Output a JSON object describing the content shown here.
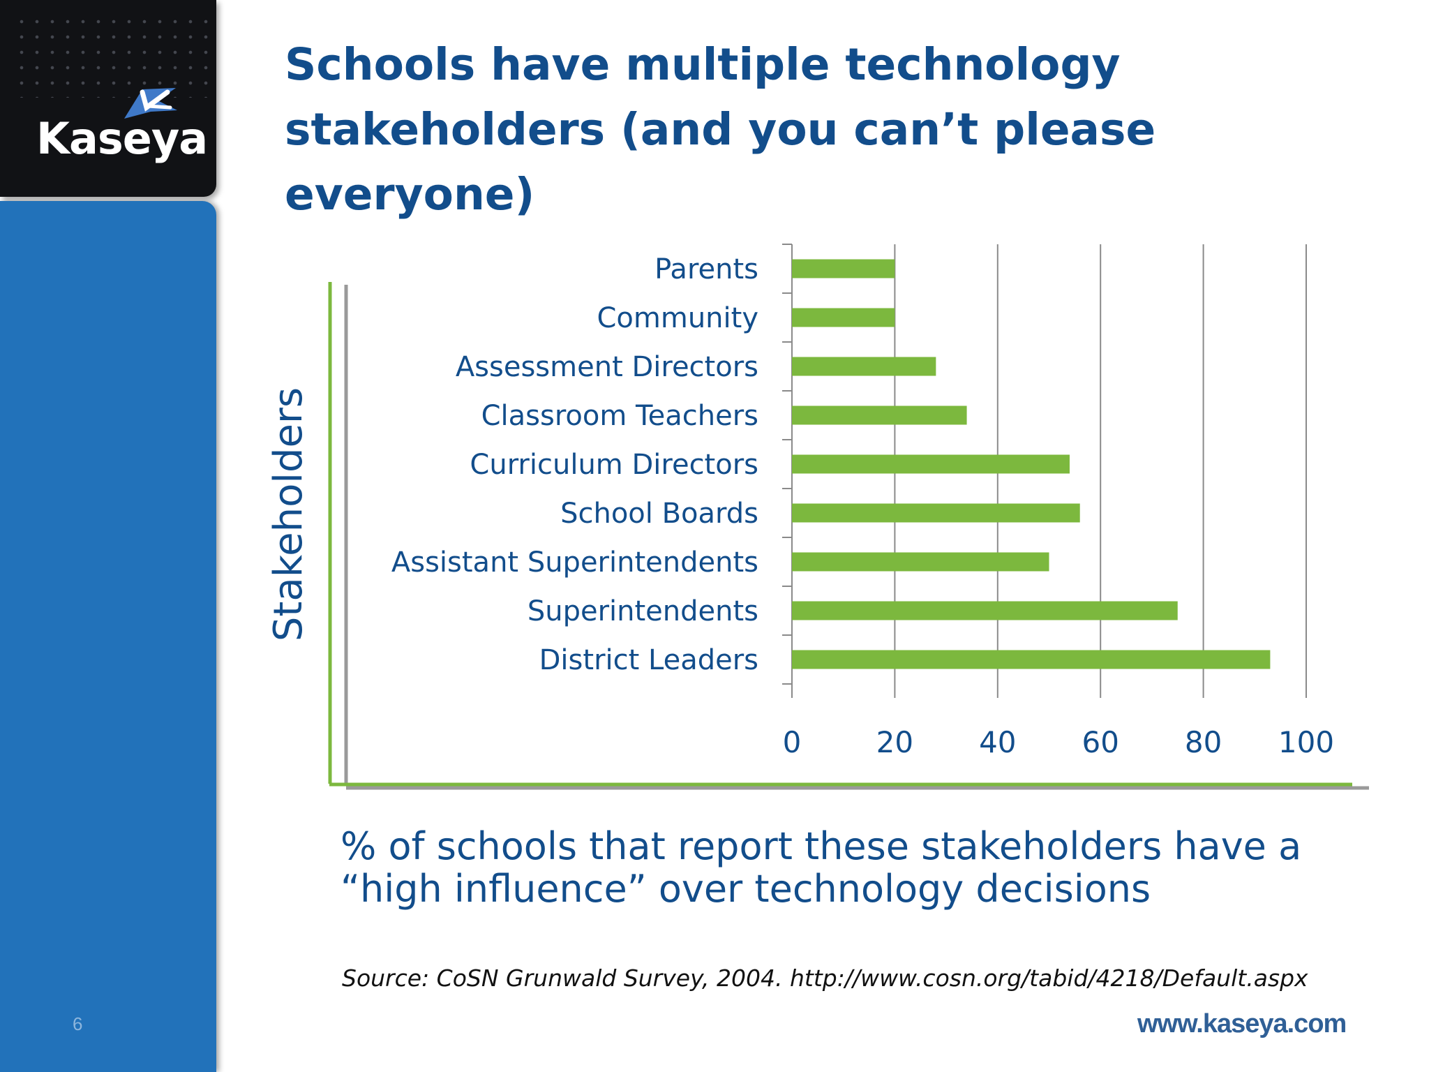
{
  "brand": {
    "logo_text": "Kaseya",
    "website": "www.kaseya.com",
    "page_number": "6"
  },
  "slide": {
    "title": "Schools have multiple technology stakeholders (and you can’t please everyone)",
    "caption": "% of schools that report these stakeholders have a “high influence” over technology decisions",
    "source": "Source: CoSN Grunwald Survey, 2004. http://www.cosn.org/tabid/4218/Default.aspx"
  },
  "colors": {
    "bar": "#7cb83e",
    "title": "#124d8b",
    "sidebar": "#2272ba",
    "header": "#111215"
  },
  "chart_data": {
    "type": "bar",
    "orientation": "horizontal",
    "ylabel": "Stakeholders",
    "categories": [
      "Parents",
      "Community",
      "Assessment Directors",
      "Classroom Teachers",
      "Curriculum Directors",
      "School Boards",
      "Assistant Superintendents",
      "Superintendents",
      "District Leaders"
    ],
    "values": [
      20,
      20,
      28,
      34,
      54,
      56,
      50,
      75,
      93
    ],
    "xlim": [
      0,
      100
    ],
    "xticks": [
      "0",
      "20",
      "40",
      "60",
      "80",
      "100"
    ],
    "grid": true,
    "legend": false
  }
}
